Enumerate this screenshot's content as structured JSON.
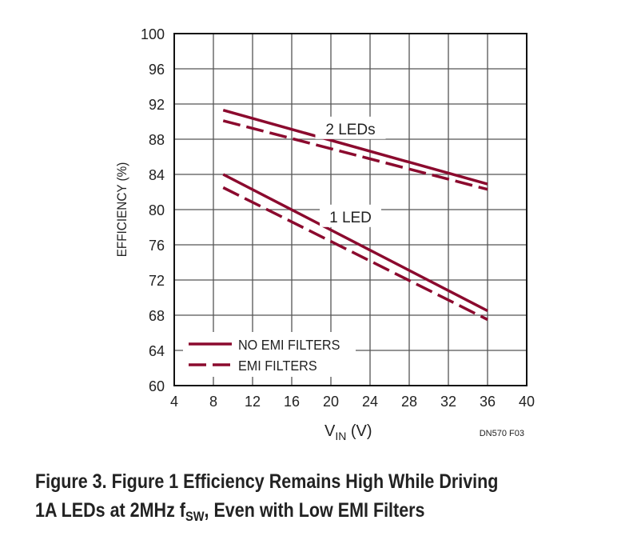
{
  "chart_data": {
    "type": "line",
    "title": "",
    "xlabel": "V",
    "xlabel_sub": "IN",
    "xlabel_unit": " (V)",
    "ylabel": "EFFICIENCY (%)",
    "xlim": [
      4,
      40
    ],
    "ylim": [
      60,
      100
    ],
    "xticks": [
      4,
      8,
      12,
      16,
      20,
      24,
      28,
      32,
      36,
      40
    ],
    "yticks": [
      60,
      64,
      68,
      72,
      76,
      80,
      84,
      88,
      92,
      96,
      100
    ],
    "grid": true,
    "line_color": "#8B0A2E",
    "series": [
      {
        "name": "2 LEDs, NO EMI FILTERS",
        "style": "solid",
        "x": [
          9,
          36
        ],
        "y": [
          91.3,
          82.9
        ]
      },
      {
        "name": "2 LEDs, EMI FILTERS",
        "style": "dashed",
        "x": [
          9,
          36
        ],
        "y": [
          90.1,
          82.3
        ]
      },
      {
        "name": "1 LED, NO EMI FILTERS",
        "style": "solid",
        "x": [
          9,
          36
        ],
        "y": [
          84.0,
          68.5
        ]
      },
      {
        "name": "1 LED, EMI FILTERS",
        "style": "dashed",
        "x": [
          9,
          36
        ],
        "y": [
          82.5,
          67.5
        ]
      }
    ],
    "annotations": [
      {
        "text": "2 LEDs",
        "x": 22,
        "y": 89.2
      },
      {
        "text": "1 LED",
        "x": 22,
        "y": 79.2
      }
    ],
    "legend": {
      "placement": "bottom-left",
      "entries": [
        {
          "label": "NO EMI FILTERS",
          "style": "solid"
        },
        {
          "label": "EMI FILTERS",
          "style": "dashed"
        }
      ]
    },
    "figure_id": "DN570 F03"
  },
  "caption": {
    "line1": "Figure 3. Figure 1 Efficiency Remains High While Driving",
    "line2_a": "1A LEDs at 2MHz f",
    "line2_sub": "SW",
    "line2_b": ", Even with Low EMI Filters"
  }
}
